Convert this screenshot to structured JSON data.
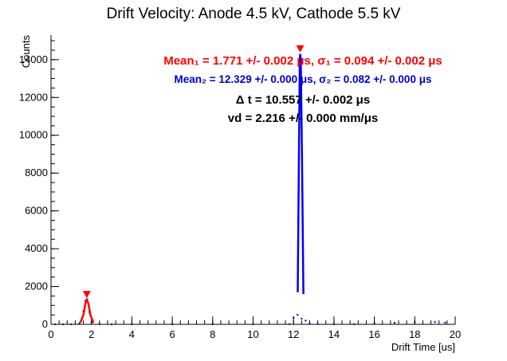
{
  "chart_data": {
    "type": "histogram",
    "title": "Drift Velocity: Anode 4.5 kV, Cathode 5.5 kV",
    "xlabel": "Drift Time [us]",
    "ylabel": "Counts",
    "xlim": [
      0,
      20
    ],
    "ylim": [
      0,
      15300
    ],
    "x_major_ticks": [
      0,
      2,
      4,
      6,
      8,
      10,
      12,
      14,
      16,
      18,
      20
    ],
    "x_tick_labels": [
      "0",
      "2",
      "4",
      "6",
      "8",
      "10",
      "12",
      "14",
      "16",
      "18",
      "20"
    ],
    "y_major_ticks": [
      0,
      2000,
      4000,
      6000,
      8000,
      10000,
      12000,
      14000
    ],
    "y_tick_labels": [
      "0",
      "2000",
      "4000",
      "6000",
      "8000",
      "10000",
      "12000",
      "14000"
    ],
    "histogram": {
      "color": "#000080",
      "points": [
        {
          "x": 0.2,
          "y": 5
        },
        {
          "x": 0.6,
          "y": 3
        },
        {
          "x": 1.0,
          "y": 5
        },
        {
          "x": 1.4,
          "y": 60
        },
        {
          "x": 1.6,
          "y": 700
        },
        {
          "x": 1.7,
          "y": 1250
        },
        {
          "x": 1.8,
          "y": 1300
        },
        {
          "x": 1.9,
          "y": 650
        },
        {
          "x": 2.0,
          "y": 90
        },
        {
          "x": 2.4,
          "y": 10
        },
        {
          "x": 3.0,
          "y": 5
        },
        {
          "x": 4.0,
          "y": 5
        },
        {
          "x": 6.0,
          "y": 5
        },
        {
          "x": 8.0,
          "y": 5
        },
        {
          "x": 10.0,
          "y": 8
        },
        {
          "x": 11.8,
          "y": 15
        },
        {
          "x": 12.0,
          "y": 350
        },
        {
          "x": 12.2,
          "y": 500
        },
        {
          "x": 12.4,
          "y": 300
        },
        {
          "x": 12.6,
          "y": 200
        },
        {
          "x": 12.8,
          "y": 40
        },
        {
          "x": 13.2,
          "y": 12
        },
        {
          "x": 14.0,
          "y": 8
        },
        {
          "x": 15.0,
          "y": 10
        },
        {
          "x": 16.0,
          "y": 45
        },
        {
          "x": 17.0,
          "y": 80
        },
        {
          "x": 18.0,
          "y": 110
        },
        {
          "x": 19.0,
          "y": 120
        },
        {
          "x": 19.5,
          "y": 90
        }
      ]
    },
    "fits": [
      {
        "color": "#ff0000",
        "points": [
          {
            "x": 1.45,
            "y": 80
          },
          {
            "x": 1.6,
            "y": 500
          },
          {
            "x": 1.7,
            "y": 1100
          },
          {
            "x": 1.77,
            "y": 1300
          },
          {
            "x": 1.85,
            "y": 1100
          },
          {
            "x": 1.95,
            "y": 500
          },
          {
            "x": 2.1,
            "y": 80
          }
        ]
      },
      {
        "color": "#0000ff",
        "points": [
          {
            "x": 12.21,
            "y": 1700
          },
          {
            "x": 12.27,
            "y": 9000
          },
          {
            "x": 12.31,
            "y": 14000
          },
          {
            "x": 12.33,
            "y": 14300
          },
          {
            "x": 12.36,
            "y": 14000
          },
          {
            "x": 12.42,
            "y": 9000
          },
          {
            "x": 12.49,
            "y": 1600
          }
        ]
      }
    ],
    "peak_markers": [
      {
        "x": 1.771,
        "y": 1300,
        "color": "#ff0000"
      },
      {
        "x": 12.329,
        "y": 14300,
        "color": "#ff0000"
      }
    ],
    "annotations": [
      {
        "text": "Mean₁ = 1.771 +/- 0.002 μs, σ₁ = 0.094 +/- 0.002 μs",
        "color": "#ff0000"
      },
      {
        "text": "Mean₂ = 12.329 +/- 0.000 μs, σ₂ = 0.082 +/- 0.000 μs",
        "color": "#0000cc"
      },
      {
        "text": "Δ t = 10.557 +/- 0.002 μs",
        "color": "#000000"
      },
      {
        "text": "vd = 2.216 +/- 0.000 mm/μs",
        "color": "#000000"
      }
    ],
    "grid": false,
    "legend": "none"
  }
}
